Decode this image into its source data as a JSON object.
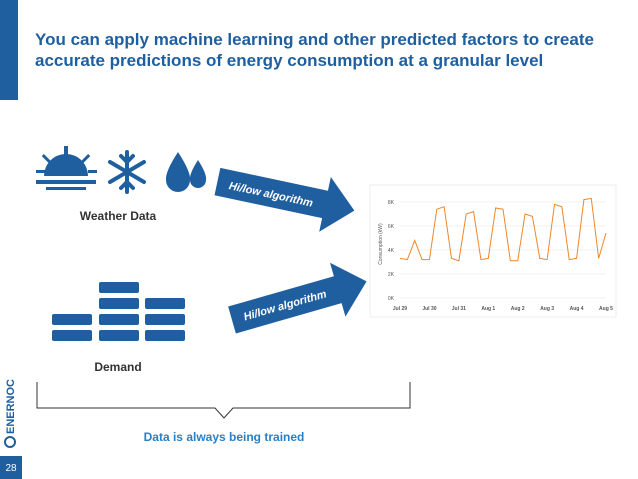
{
  "header": {
    "title_lines": [
      "You can apply machine learning and other predicted factors to create",
      "accurate predictions of energy consumption at a granular level"
    ]
  },
  "inputs": [
    {
      "label": "Weather Data"
    },
    {
      "label": "Demand"
    }
  ],
  "arrows": [
    {
      "label": "Hi/low algorithm"
    },
    {
      "label": "Hi/low algorithm"
    }
  ],
  "chart_data": {
    "type": "line",
    "y_label": "Consumption (kW)",
    "categories": [
      "Jul 29",
      null,
      null,
      null,
      "Jul 30",
      null,
      null,
      null,
      "Jul 31",
      null,
      null,
      null,
      "Aug 1",
      null,
      null,
      null,
      "Aug 2",
      null,
      null,
      null,
      "Aug 3",
      null,
      null,
      null,
      "Aug 4",
      null,
      null,
      null,
      "Aug 5"
    ],
    "series": [
      {
        "name": "Consumption",
        "color": "#f0862a",
        "values": [
          3300,
          3200,
          4800,
          3200,
          3200,
          7400,
          7600,
          3300,
          3100,
          7000,
          7200,
          3200,
          3300,
          7500,
          7400,
          3100,
          3100,
          7000,
          6800,
          3300,
          3200,
          7800,
          7600,
          3200,
          3300,
          8200,
          8300,
          3300,
          5400
        ]
      }
    ],
    "ylim": [
      0,
      9000
    ],
    "yticks": [
      {
        "value": 0,
        "label": "0K"
      },
      {
        "value": 2000,
        "label": "2K"
      },
      {
        "value": 4000,
        "label": "4K"
      },
      {
        "value": 6000,
        "label": "6K"
      },
      {
        "value": 8000,
        "label": "8K"
      }
    ],
    "grid": true
  },
  "footer": {
    "note": "Data is always being trained",
    "page_number": "28",
    "logo": "ENERNOC"
  }
}
